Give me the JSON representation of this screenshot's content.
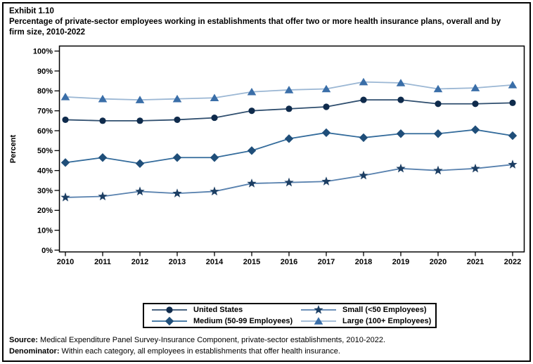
{
  "window": {
    "background": "#ffffff",
    "border_color": "#000000"
  },
  "title": {
    "exhibit": "Exhibit 1.10",
    "text": "Percentage of private-sector employees working in establishments that offer two or more health insurance plans, overall and by firm size, 2010-2022"
  },
  "chart_data": {
    "type": "line",
    "x": [
      2010,
      2011,
      2012,
      2013,
      2014,
      2015,
      2016,
      2017,
      2018,
      2019,
      2020,
      2021,
      2022
    ],
    "xlabel": "",
    "ylabel": "Percent",
    "ylim": [
      0,
      100
    ],
    "ytick_step": 10,
    "ytick_suffix": "%",
    "grid": false,
    "legend_position": "bottom",
    "series": [
      {
        "name": "United States",
        "marker": "circle",
        "marker_color": "#0f2b4c",
        "line_color": "#2f4e6e",
        "values": [
          65.5,
          65,
          65,
          65.5,
          66.5,
          70,
          71,
          72,
          75.5,
          75.5,
          73.5,
          73.5,
          74
        ]
      },
      {
        "name": "Small (<50 Employees)",
        "marker": "star",
        "marker_color": "#1c3e63",
        "line_color": "#5881ae",
        "values": [
          26.5,
          27,
          29.5,
          28.5,
          29.5,
          33.5,
          34,
          34.5,
          37.5,
          41,
          40,
          41,
          43
        ]
      },
      {
        "name": "Medium (50-99 Employees)",
        "marker": "diamond",
        "marker_color": "#1f4e79",
        "line_color": "#336b9b",
        "values": [
          44,
          46.5,
          43.5,
          46.5,
          46.5,
          50,
          56,
          59,
          56.5,
          58.5,
          58.5,
          60.5,
          57.5
        ]
      },
      {
        "name": "Large (100+ Employees)",
        "marker": "triangle",
        "marker_color": "#3a6ea8",
        "line_color": "#9bb7d4",
        "values": [
          77,
          76,
          75.5,
          76,
          76.5,
          79.5,
          80.5,
          81,
          84.5,
          84,
          81,
          81.5,
          83
        ]
      }
    ]
  },
  "footer": {
    "source_label": "Source:",
    "source_text": " Medical Expenditure Panel Survey-Insurance Component, private-sector establishments, 2010-2022.",
    "denominator_label": "Denominator:",
    "denominator_text": " Within each category, all employees in establishments that offer health insurance."
  }
}
